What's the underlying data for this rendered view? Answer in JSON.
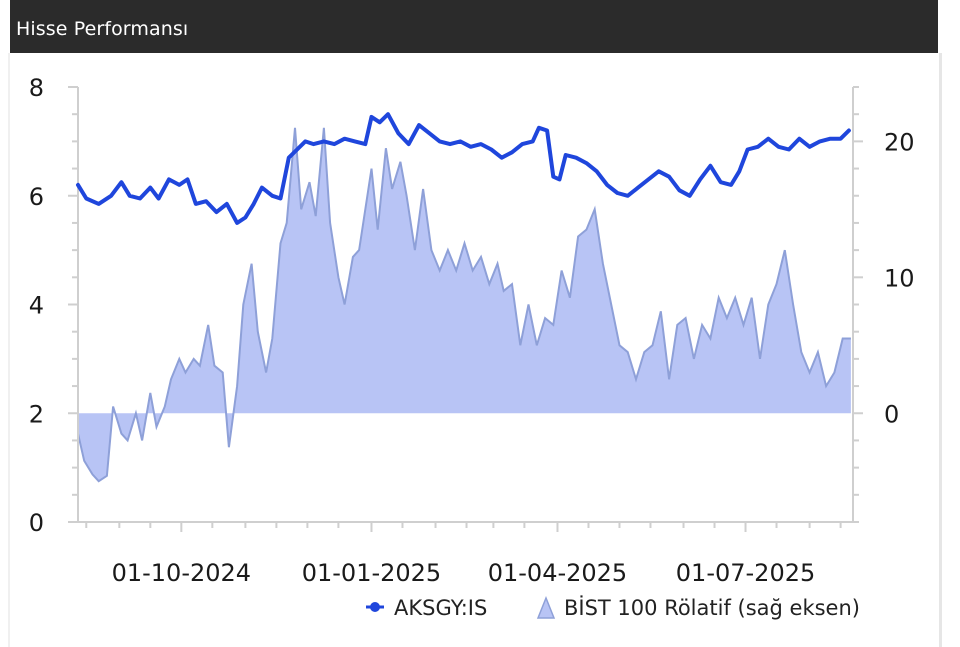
{
  "header": {
    "title": "Hisse Performansı"
  },
  "chart_data": {
    "type": "line",
    "x_axis": {
      "type": "date",
      "range": [
        "2024-08-12",
        "2025-08-22"
      ],
      "tick_labels": [
        "01-10-2024",
        "01-01-2025",
        "01-04-2025",
        "01-07-2025"
      ],
      "tick_dates": [
        "2024-10-01",
        "2025-01-01",
        "2025-04-01",
        "2025-07-01"
      ]
    },
    "y_left": {
      "ylim": [
        0,
        8
      ],
      "ticks": [
        0,
        2,
        4,
        6,
        8
      ]
    },
    "y_right": {
      "ylim": [
        -8,
        24
      ],
      "ticks": [
        0,
        10,
        20
      ]
    },
    "grid": false,
    "legend_position": "bottom-right",
    "colors": {
      "line": "#1f46dc",
      "area_fill": "#b8c4f5",
      "area_stroke": "#8ea0d8"
    },
    "series": [
      {
        "name": "AKSGY:IS",
        "axis": "left",
        "kind": "line",
        "points": [
          [
            "2024-08-12",
            6.2
          ],
          [
            "2024-08-16",
            5.95
          ],
          [
            "2024-08-22",
            5.85
          ],
          [
            "2024-08-28",
            6.0
          ],
          [
            "2024-09-02",
            6.25
          ],
          [
            "2024-09-06",
            6.0
          ],
          [
            "2024-09-11",
            5.95
          ],
          [
            "2024-09-16",
            6.15
          ],
          [
            "2024-09-20",
            5.95
          ],
          [
            "2024-09-25",
            6.3
          ],
          [
            "2024-09-30",
            6.2
          ],
          [
            "2024-10-04",
            6.3
          ],
          [
            "2024-10-08",
            5.85
          ],
          [
            "2024-10-13",
            5.9
          ],
          [
            "2024-10-18",
            5.7
          ],
          [
            "2024-10-23",
            5.85
          ],
          [
            "2024-10-28",
            5.5
          ],
          [
            "2024-11-01",
            5.6
          ],
          [
            "2024-11-05",
            5.85
          ],
          [
            "2024-11-09",
            6.15
          ],
          [
            "2024-11-14",
            6.0
          ],
          [
            "2024-11-18",
            5.95
          ],
          [
            "2024-11-22",
            6.7
          ],
          [
            "2024-11-26",
            6.85
          ],
          [
            "2024-11-30",
            7.0
          ],
          [
            "2024-12-04",
            6.95
          ],
          [
            "2024-12-09",
            7.0
          ],
          [
            "2024-12-14",
            6.95
          ],
          [
            "2024-12-19",
            7.05
          ],
          [
            "2024-12-24",
            7.0
          ],
          [
            "2024-12-29",
            6.95
          ],
          [
            "2025-01-01",
            7.45
          ],
          [
            "2025-01-05",
            7.35
          ],
          [
            "2025-01-09",
            7.5
          ],
          [
            "2025-01-14",
            7.15
          ],
          [
            "2025-01-19",
            6.95
          ],
          [
            "2025-01-24",
            7.3
          ],
          [
            "2025-01-29",
            7.15
          ],
          [
            "2025-02-03",
            7.0
          ],
          [
            "2025-02-08",
            6.95
          ],
          [
            "2025-02-13",
            7.0
          ],
          [
            "2025-02-18",
            6.9
          ],
          [
            "2025-02-23",
            6.95
          ],
          [
            "2025-02-28",
            6.85
          ],
          [
            "2025-03-05",
            6.7
          ],
          [
            "2025-03-10",
            6.8
          ],
          [
            "2025-03-15",
            6.95
          ],
          [
            "2025-03-20",
            7.0
          ],
          [
            "2025-03-23",
            7.25
          ],
          [
            "2025-03-27",
            7.2
          ],
          [
            "2025-03-30",
            6.35
          ],
          [
            "2025-04-02",
            6.3
          ],
          [
            "2025-04-05",
            6.75
          ],
          [
            "2025-04-10",
            6.7
          ],
          [
            "2025-04-15",
            6.6
          ],
          [
            "2025-04-20",
            6.45
          ],
          [
            "2025-04-25",
            6.2
          ],
          [
            "2025-04-30",
            6.05
          ],
          [
            "2025-05-05",
            6.0
          ],
          [
            "2025-05-10",
            6.15
          ],
          [
            "2025-05-15",
            6.3
          ],
          [
            "2025-05-20",
            6.45
          ],
          [
            "2025-05-25",
            6.35
          ],
          [
            "2025-05-30",
            6.1
          ],
          [
            "2025-06-04",
            6.0
          ],
          [
            "2025-06-09",
            6.3
          ],
          [
            "2025-06-14",
            6.55
          ],
          [
            "2025-06-19",
            6.25
          ],
          [
            "2025-06-24",
            6.2
          ],
          [
            "2025-06-28",
            6.45
          ],
          [
            "2025-07-02",
            6.85
          ],
          [
            "2025-07-07",
            6.9
          ],
          [
            "2025-07-12",
            7.05
          ],
          [
            "2025-07-17",
            6.9
          ],
          [
            "2025-07-22",
            6.85
          ],
          [
            "2025-07-27",
            7.05
          ],
          [
            "2025-08-01",
            6.9
          ],
          [
            "2025-08-06",
            7.0
          ],
          [
            "2025-08-11",
            7.05
          ],
          [
            "2025-08-16",
            7.05
          ],
          [
            "2025-08-20",
            7.2
          ]
        ]
      },
      {
        "name": "BİST 100 Rölatif (sağ eksen)",
        "axis": "right",
        "kind": "area",
        "baseline": 0,
        "points": [
          [
            "2024-08-12",
            -1.5
          ],
          [
            "2024-08-15",
            -3.5
          ],
          [
            "2024-08-19",
            -4.5
          ],
          [
            "2024-08-22",
            -5.0
          ],
          [
            "2024-08-26",
            -4.6
          ],
          [
            "2024-08-29",
            0.5
          ],
          [
            "2024-09-02",
            -1.5
          ],
          [
            "2024-09-05",
            -2.0
          ],
          [
            "2024-09-09",
            0.0
          ],
          [
            "2024-09-12",
            -2.0
          ],
          [
            "2024-09-16",
            1.5
          ],
          [
            "2024-09-19",
            -1.0
          ],
          [
            "2024-09-23",
            0.5
          ],
          [
            "2024-09-26",
            2.5
          ],
          [
            "2024-09-30",
            4.0
          ],
          [
            "2024-10-03",
            3.0
          ],
          [
            "2024-10-07",
            4.0
          ],
          [
            "2024-10-10",
            3.5
          ],
          [
            "2024-10-14",
            6.5
          ],
          [
            "2024-10-17",
            3.5
          ],
          [
            "2024-10-21",
            3.0
          ],
          [
            "2024-10-24",
            -2.5
          ],
          [
            "2024-10-28",
            2.0
          ],
          [
            "2024-10-31",
            8.0
          ],
          [
            "2024-11-04",
            11.0
          ],
          [
            "2024-11-07",
            6.0
          ],
          [
            "2024-11-11",
            3.0
          ],
          [
            "2024-11-14",
            5.5
          ],
          [
            "2024-11-18",
            12.5
          ],
          [
            "2024-11-21",
            14.0
          ],
          [
            "2024-11-25",
            21.0
          ],
          [
            "2024-11-28",
            15.0
          ],
          [
            "2024-12-02",
            17.0
          ],
          [
            "2024-12-05",
            14.5
          ],
          [
            "2024-12-09",
            21.0
          ],
          [
            "2024-12-12",
            14.0
          ],
          [
            "2024-12-16",
            10.0
          ],
          [
            "2024-12-19",
            8.0
          ],
          [
            "2024-12-23",
            11.5
          ],
          [
            "2024-12-26",
            12.0
          ],
          [
            "2025-01-01",
            18.0
          ],
          [
            "2025-01-04",
            13.5
          ],
          [
            "2025-01-08",
            19.5
          ],
          [
            "2025-01-11",
            16.5
          ],
          [
            "2025-01-15",
            18.5
          ],
          [
            "2025-01-18",
            16.0
          ],
          [
            "2025-01-22",
            12.0
          ],
          [
            "2025-01-26",
            16.5
          ],
          [
            "2025-01-30",
            12.0
          ],
          [
            "2025-02-03",
            10.5
          ],
          [
            "2025-02-07",
            12.0
          ],
          [
            "2025-02-11",
            10.5
          ],
          [
            "2025-02-15",
            12.5
          ],
          [
            "2025-02-19",
            10.5
          ],
          [
            "2025-02-23",
            11.5
          ],
          [
            "2025-02-27",
            9.5
          ],
          [
            "2025-03-03",
            11.0
          ],
          [
            "2025-03-06",
            9.0
          ],
          [
            "2025-03-10",
            9.5
          ],
          [
            "2025-03-14",
            5.0
          ],
          [
            "2025-03-18",
            8.0
          ],
          [
            "2025-03-22",
            5.0
          ],
          [
            "2025-03-26",
            7.0
          ],
          [
            "2025-03-30",
            6.5
          ],
          [
            "2025-04-03",
            10.5
          ],
          [
            "2025-04-07",
            8.5
          ],
          [
            "2025-04-11",
            13.0
          ],
          [
            "2025-04-15",
            13.5
          ],
          [
            "2025-04-19",
            15.0
          ],
          [
            "2025-04-23",
            11.0
          ],
          [
            "2025-04-27",
            8.0
          ],
          [
            "2025-05-01",
            5.0
          ],
          [
            "2025-05-05",
            4.5
          ],
          [
            "2025-05-09",
            2.5
          ],
          [
            "2025-05-13",
            4.5
          ],
          [
            "2025-05-17",
            5.0
          ],
          [
            "2025-05-21",
            7.5
          ],
          [
            "2025-05-25",
            2.5
          ],
          [
            "2025-05-29",
            6.5
          ],
          [
            "2025-06-02",
            7.0
          ],
          [
            "2025-06-06",
            4.0
          ],
          [
            "2025-06-10",
            6.5
          ],
          [
            "2025-06-14",
            5.5
          ],
          [
            "2025-06-18",
            8.5
          ],
          [
            "2025-06-22",
            7.0
          ],
          [
            "2025-06-26",
            8.5
          ],
          [
            "2025-06-30",
            6.5
          ],
          [
            "2025-07-04",
            8.5
          ],
          [
            "2025-07-08",
            4.0
          ],
          [
            "2025-07-12",
            8.0
          ],
          [
            "2025-07-16",
            9.5
          ],
          [
            "2025-07-20",
            12.0
          ],
          [
            "2025-07-24",
            8.0
          ],
          [
            "2025-07-28",
            4.5
          ],
          [
            "2025-08-01",
            3.0
          ],
          [
            "2025-08-05",
            4.5
          ],
          [
            "2025-08-09",
            2.0
          ],
          [
            "2025-08-13",
            3.0
          ],
          [
            "2025-08-17",
            5.5
          ],
          [
            "2025-08-21",
            5.5
          ]
        ]
      }
    ]
  }
}
